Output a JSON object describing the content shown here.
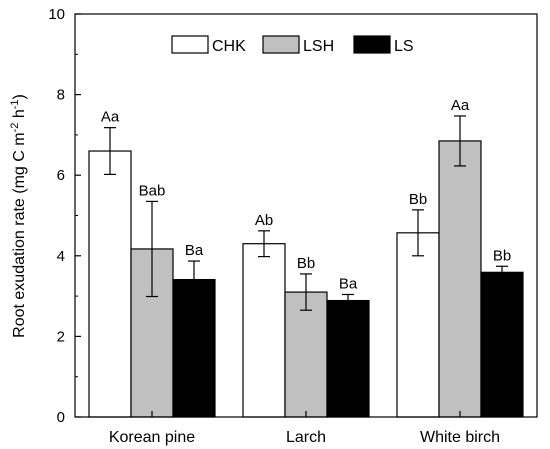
{
  "chart_data": {
    "type": "bar",
    "title": "",
    "xlabel": "",
    "ylabel": "Root exudation rate (mg C m",
    "ylabel_sup1": "-2",
    "ylabel_mid": " h",
    "ylabel_sup2": "-1",
    "ylabel_end": ")",
    "ylim": [
      0,
      10
    ],
    "yticks": [
      "0",
      "2",
      "4",
      "6",
      "8",
      "10"
    ],
    "ytick_values": [
      0,
      2,
      4,
      6,
      8,
      10
    ],
    "grid": false,
    "legend_position": "top-center",
    "categories": [
      "Korean pine",
      "Larch",
      "White birch"
    ],
    "series": [
      {
        "name": "CHK",
        "color": "#ffffff",
        "values": [
          6.6,
          4.3,
          4.57
        ],
        "errors": [
          0.58,
          0.32,
          0.57
        ],
        "labels": [
          "Aa",
          "Ab",
          "Bb"
        ]
      },
      {
        "name": "LSH",
        "color": "#c0c0c0",
        "values": [
          4.17,
          3.1,
          6.85
        ],
        "errors": [
          1.18,
          0.45,
          0.62
        ],
        "labels": [
          "Bab",
          "Bb",
          "Aa"
        ]
      },
      {
        "name": "LS",
        "color": "#000000",
        "values": [
          3.41,
          2.89,
          3.59
        ],
        "errors": [
          0.46,
          0.15,
          0.15
        ],
        "labels": [
          "Ba",
          "Ba",
          "Bb"
        ]
      }
    ]
  }
}
